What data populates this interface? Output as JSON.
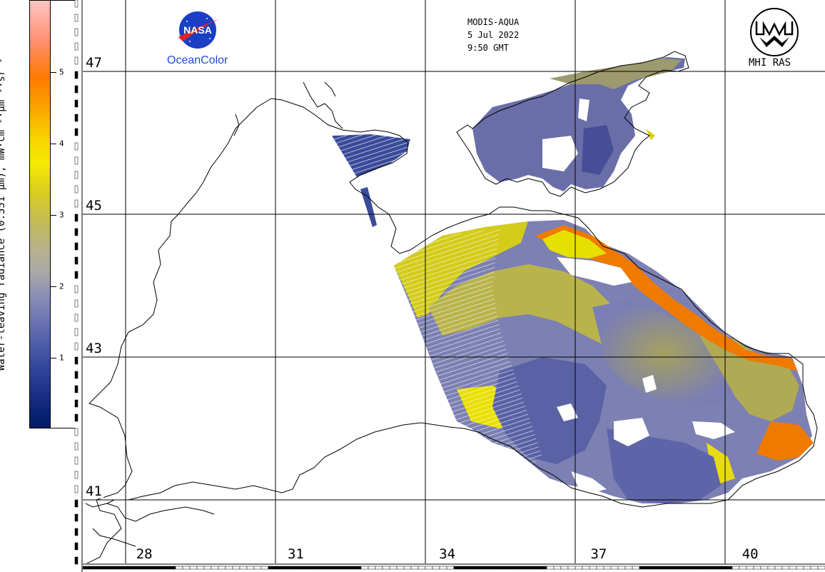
{
  "colorbar": {
    "title": "Water-leaving radiance (0.551 µm), mW·cm⁻²·µm⁻¹·sr⁻¹",
    "ticks": [
      {
        "value": 1,
        "label": "1"
      },
      {
        "value": 2,
        "label": "2"
      },
      {
        "value": 3,
        "label": "3"
      },
      {
        "value": 4,
        "label": "4"
      },
      {
        "value": 5,
        "label": "5"
      }
    ],
    "range": [
      0,
      6
    ],
    "colors": [
      "#001a66",
      "#3c4ea2",
      "#8b8fb6",
      "#c4bb57",
      "#f5ea00",
      "#fba400",
      "#fd7a00",
      "#ffc4c4"
    ]
  },
  "map": {
    "latitudes": [
      {
        "value": 47,
        "label": "47"
      },
      {
        "value": 45,
        "label": "45"
      },
      {
        "value": 43,
        "label": "43"
      },
      {
        "value": 41,
        "label": "41"
      }
    ],
    "longitudes": [
      {
        "value": 28,
        "label": "28"
      },
      {
        "value": 31,
        "label": "31"
      },
      {
        "value": 34,
        "label": "34"
      },
      {
        "value": 37,
        "label": "37"
      },
      {
        "value": 40,
        "label": "40"
      }
    ],
    "lat_range": [
      40,
      48
    ],
    "lon_range": [
      27,
      41.7
    ]
  },
  "header": {
    "sensor": "MODIS-AQUA",
    "date": "5 Jul 2022",
    "time": "9:50 GMT"
  },
  "logos": {
    "nasa_word": "NASA",
    "ocean_color": "OceanColor",
    "mhi": "MHI RAS"
  }
}
